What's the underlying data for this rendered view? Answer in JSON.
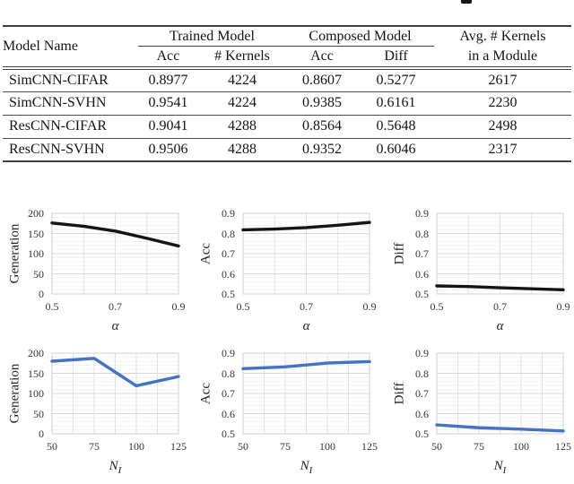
{
  "page": {
    "background": "#ffffff"
  },
  "table": {
    "headers": {
      "model_name": "Model Name",
      "trained_group": "Trained Model",
      "composed_group": "Composed Model",
      "avg_line1": "Avg. # Kernels",
      "avg_line2": "in a Module",
      "trained_acc": "Acc",
      "trained_kernels": "# Kernels",
      "composed_acc": "Acc",
      "composed_diff": "Diff"
    },
    "rows": [
      [
        "SimCNN-CIFAR",
        "0.8977",
        "4224",
        "0.8607",
        "0.5277",
        "2617"
      ],
      [
        "SimCNN-SVHN",
        "0.9541",
        "4224",
        "0.9385",
        "0.6161",
        "2230"
      ],
      [
        "ResCNN-CIFAR",
        "0.9041",
        "4288",
        "0.8564",
        "0.5648",
        "2498"
      ],
      [
        "ResCNN-SVHN",
        "0.9506",
        "4288",
        "0.9352",
        "0.6046",
        "2317"
      ]
    ]
  },
  "chart_data": [
    {
      "name": "chart-generation-vs-alpha",
      "type": "line",
      "ylabel": "Generation",
      "xlabel": "α",
      "xlabel_sub": "",
      "x": [
        0.5,
        0.6,
        0.7,
        0.8,
        0.9
      ],
      "values": [
        176,
        168,
        156,
        138,
        119
      ],
      "xlim": [
        0.5,
        0.9
      ],
      "ylim": [
        0,
        200
      ],
      "ytick_vals": [
        0,
        50,
        100,
        150,
        200
      ],
      "ytick_labels": [
        "0",
        "50",
        "100",
        "150",
        "200"
      ],
      "y_minor": 10,
      "xtick_vals": [
        0.5,
        0.7,
        0.9
      ],
      "xtick_labels": [
        "0.5",
        "0.7",
        "0.9"
      ],
      "xgrid_vals": [
        0.5,
        0.6,
        0.7,
        0.8,
        0.9
      ],
      "line_color": "#141414",
      "grid": true,
      "legend": "none"
    },
    {
      "name": "chart-acc-vs-alpha",
      "type": "line",
      "ylabel": "Acc",
      "xlabel": "α",
      "xlabel_sub": "",
      "x": [
        0.5,
        0.6,
        0.7,
        0.8,
        0.9
      ],
      "values": [
        0.818,
        0.822,
        0.829,
        0.841,
        0.855
      ],
      "xlim": [
        0.5,
        0.9
      ],
      "ylim": [
        0.5,
        0.9
      ],
      "ytick_vals": [
        0.5,
        0.6,
        0.7,
        0.8,
        0.9
      ],
      "ytick_labels": [
        "0.5",
        "0.6",
        "0.7",
        "0.8",
        "0.9"
      ],
      "y_minor": 0.02,
      "xtick_vals": [
        0.5,
        0.7,
        0.9
      ],
      "xtick_labels": [
        "0.5",
        "0.7",
        "0.9"
      ],
      "xgrid_vals": [
        0.5,
        0.6,
        0.7,
        0.8,
        0.9
      ],
      "line_color": "#141414",
      "grid": true,
      "legend": "none"
    },
    {
      "name": "chart-diff-vs-alpha",
      "type": "line",
      "ylabel": "Diff",
      "xlabel": "α",
      "xlabel_sub": "",
      "x": [
        0.5,
        0.6,
        0.7,
        0.8,
        0.9
      ],
      "values": [
        0.54,
        0.537,
        0.531,
        0.526,
        0.521
      ],
      "xlim": [
        0.5,
        0.9
      ],
      "ylim": [
        0.5,
        0.9
      ],
      "ytick_vals": [
        0.5,
        0.6,
        0.7,
        0.8,
        0.9
      ],
      "ytick_labels": [
        "0.5",
        "0.6",
        "0.7",
        "0.8",
        "0.9"
      ],
      "y_minor": 0.02,
      "xtick_vals": [
        0.5,
        0.7,
        0.9
      ],
      "xtick_labels": [
        "0.5",
        "0.7",
        "0.9"
      ],
      "xgrid_vals": [
        0.5,
        0.6,
        0.7,
        0.8,
        0.9
      ],
      "line_color": "#141414",
      "grid": true,
      "legend": "none"
    },
    {
      "name": "chart-generation-vs-ni",
      "type": "line",
      "ylabel": "Generation",
      "xlabel": "N",
      "xlabel_sub": "I",
      "x": [
        50,
        75,
        100,
        125
      ],
      "values": [
        180,
        187,
        119,
        142
      ],
      "xlim": [
        50,
        125
      ],
      "ylim": [
        0,
        200
      ],
      "ytick_vals": [
        0,
        50,
        100,
        150,
        200
      ],
      "ytick_labels": [
        "0",
        "50",
        "100",
        "150",
        "200"
      ],
      "y_minor": 10,
      "xtick_vals": [
        50,
        75,
        100,
        125
      ],
      "xtick_labels": [
        "50",
        "75",
        "100",
        "125"
      ],
      "xgrid_vals": [
        50,
        62.5,
        75,
        87.5,
        100,
        112.5,
        125
      ],
      "line_color": "#4472c4",
      "grid": true,
      "legend": "none"
    },
    {
      "name": "chart-acc-vs-ni",
      "type": "line",
      "ylabel": "Acc",
      "xlabel": "N",
      "xlabel_sub": "I",
      "x": [
        50,
        75,
        100,
        125
      ],
      "values": [
        0.823,
        0.832,
        0.851,
        0.858
      ],
      "xlim": [
        50,
        125
      ],
      "ylim": [
        0.5,
        0.9
      ],
      "ytick_vals": [
        0.5,
        0.6,
        0.7,
        0.8,
        0.9
      ],
      "ytick_labels": [
        "0.5",
        "0.6",
        "0.7",
        "0.8",
        "0.9"
      ],
      "y_minor": 0.02,
      "xtick_vals": [
        50,
        75,
        100,
        125
      ],
      "xtick_labels": [
        "50",
        "75",
        "100",
        "125"
      ],
      "xgrid_vals": [
        50,
        62.5,
        75,
        87.5,
        100,
        112.5,
        125
      ],
      "line_color": "#4472c4",
      "grid": true,
      "legend": "none"
    },
    {
      "name": "chart-diff-vs-ni",
      "type": "line",
      "ylabel": "Diff",
      "xlabel": "N",
      "xlabel_sub": "I",
      "x": [
        50,
        75,
        100,
        125
      ],
      "values": [
        0.544,
        0.53,
        0.523,
        0.514
      ],
      "xlim": [
        50,
        125
      ],
      "ylim": [
        0.5,
        0.9
      ],
      "ytick_vals": [
        0.5,
        0.6,
        0.7,
        0.8,
        0.9
      ],
      "ytick_labels": [
        "0.5",
        "0.6",
        "0.7",
        "0.8",
        "0.9"
      ],
      "y_minor": 0.02,
      "xtick_vals": [
        50,
        75,
        100,
        125
      ],
      "xtick_labels": [
        "50",
        "75",
        "100",
        "125"
      ],
      "xgrid_vals": [
        50,
        62.5,
        75,
        87.5,
        100,
        112.5,
        125
      ],
      "line_color": "#4472c4",
      "grid": true,
      "legend": "none"
    }
  ]
}
